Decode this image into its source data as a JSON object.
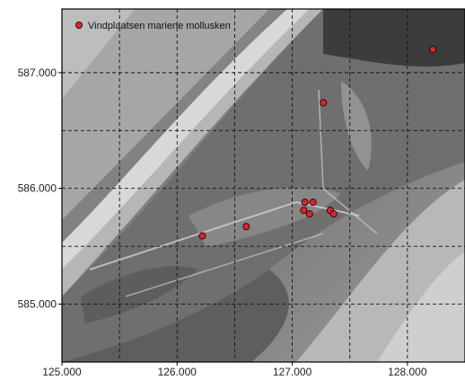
{
  "chart_data": {
    "type": "scatter",
    "legend": {
      "label": "Vindplaatsen mariene mollusken",
      "placement": "top-left"
    },
    "marker_color": "#d9262b",
    "xlim": [
      125000,
      128500
    ],
    "ylim": [
      584500,
      587550
    ],
    "xticks": [
      {
        "value": 125000,
        "label": "125.000"
      },
      {
        "value": 126000,
        "label": "126.000"
      },
      {
        "value": 127000,
        "label": "127.000"
      },
      {
        "value": 128000,
        "label": "128.000"
      }
    ],
    "yticks": [
      {
        "value": 585000,
        "label": "585.000"
      },
      {
        "value": 586000,
        "label": "586.000"
      },
      {
        "value": 587000,
        "label": "587.000"
      }
    ],
    "grid_x": [
      125500,
      126000,
      126500,
      127000,
      127500,
      128000
    ],
    "grid_y": [
      585000,
      585500,
      586000,
      586500,
      587000
    ],
    "grid_style": "dashed",
    "points": [
      {
        "x": 128220,
        "y": 587200
      },
      {
        "x": 127270,
        "y": 586740
      },
      {
        "x": 127110,
        "y": 585880
      },
      {
        "x": 127180,
        "y": 585880
      },
      {
        "x": 127100,
        "y": 585810
      },
      {
        "x": 127150,
        "y": 585780
      },
      {
        "x": 127330,
        "y": 585810
      },
      {
        "x": 127360,
        "y": 585780
      },
      {
        "x": 126600,
        "y": 585670
      },
      {
        "x": 126220,
        "y": 585590
      }
    ]
  }
}
